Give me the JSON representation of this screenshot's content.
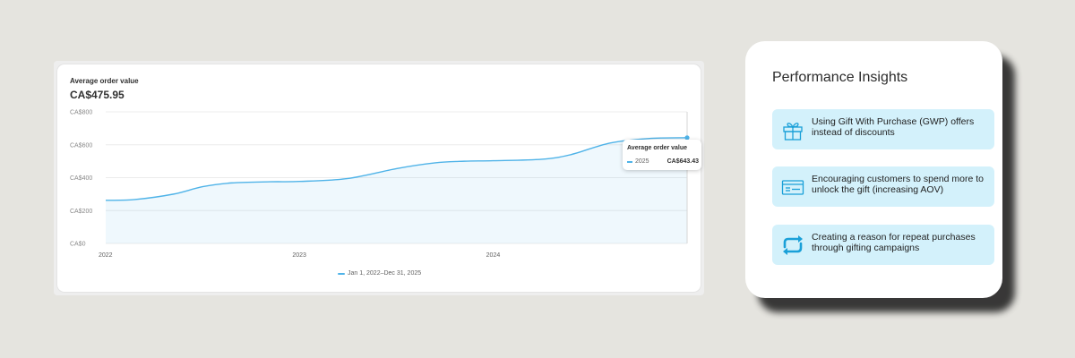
{
  "chart_card": {
    "metric_title": "Average order value",
    "metric_value": "CA$475.95",
    "legend_label": "Jan 1, 2022–Dec 31, 2025",
    "tooltip": {
      "title": "Average order value",
      "series": "2025",
      "value": "CA$643.43"
    }
  },
  "chart_data": {
    "type": "area",
    "y_ticks": [
      "CA$800",
      "CA$600",
      "CA$400",
      "CA$200",
      "CA$0"
    ],
    "x_ticks": [
      "2022",
      "2023",
      "2024"
    ],
    "ylim": [
      0,
      800
    ],
    "xlim": [
      2022.0,
      2025.0
    ],
    "grid": true,
    "legend_position": "bottom",
    "series": [
      {
        "color": "#4fb3e8",
        "x": [
          2022.0,
          2022.15,
          2022.35,
          2022.5,
          2022.65,
          2022.85,
          2023.0,
          2023.25,
          2023.5,
          2023.7,
          2023.85,
          2024.0,
          2024.25,
          2024.4,
          2024.6,
          2024.8,
          2025.0
        ],
        "y": [
          262,
          267,
          300,
          345,
          368,
          375,
          377,
          395,
          455,
          490,
          500,
          503,
          512,
          540,
          610,
          638,
          643
        ]
      }
    ]
  },
  "insights": {
    "title": "Performance Insights",
    "items": [
      {
        "icon": "gift-icon",
        "text": "Using Gift With Purchase (GWP) offers instead of discounts"
      },
      {
        "icon": "card-icon",
        "text": "Encouraging customers to spend more to unlock the gift (increasing AOV)"
      },
      {
        "icon": "repeat-icon",
        "text": "Creating a reason for repeat purchases through gifting campaigns"
      }
    ]
  },
  "colors": {
    "accent": "#4fb3e8",
    "icon": "#1aa0d8",
    "insight_bg": "#d3f1fb"
  }
}
